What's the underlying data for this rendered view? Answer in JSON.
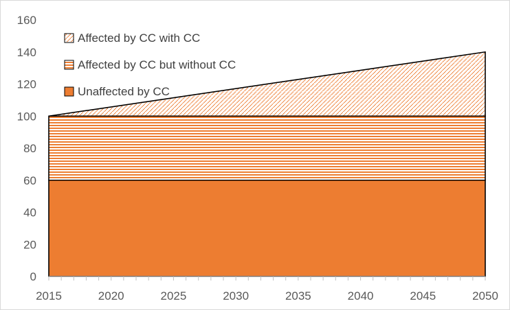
{
  "chart_data": {
    "type": "area",
    "stacked": true,
    "title": "",
    "xlabel": "",
    "ylabel": "",
    "xlim": [
      2015,
      2050
    ],
    "ylim": [
      0,
      160
    ],
    "x_ticks": [
      2015,
      2020,
      2025,
      2030,
      2035,
      2040,
      2045,
      2050
    ],
    "y_ticks": [
      0,
      20,
      40,
      60,
      80,
      100,
      120,
      140,
      160
    ],
    "grid": false,
    "legend_position": "top-left",
    "x": [
      2015,
      2050
    ],
    "series": [
      {
        "name": "Unaffected by CC",
        "values": [
          60,
          60
        ],
        "color": "#ED7D31",
        "pattern": "solid"
      },
      {
        "name": "Affected by CC but without CC",
        "values": [
          40,
          40
        ],
        "color": "#ED7D31",
        "pattern": "horizontal-lines"
      },
      {
        "name": "Affected by CC with CC",
        "values": [
          0,
          40
        ],
        "color": "#ED7D31",
        "pattern": "diagonal-dots"
      }
    ],
    "legend_order": [
      "Affected by CC with CC",
      "Affected by CC but without CC",
      "Unaffected by CC"
    ]
  }
}
